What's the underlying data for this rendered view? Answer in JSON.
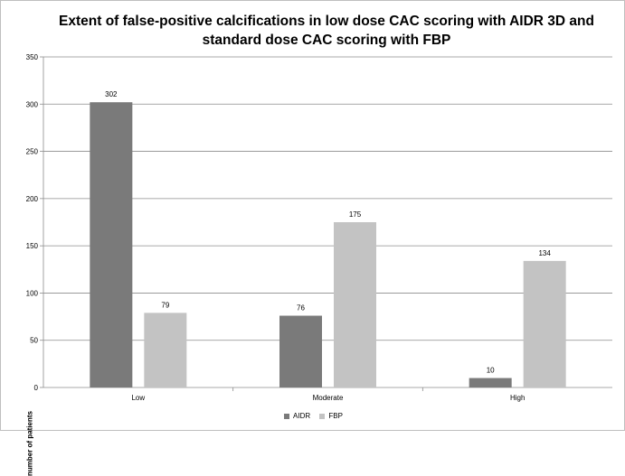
{
  "chart_data": {
    "type": "bar",
    "title_lines": [
      "Extent of false-positive calcifications in low dose CAC scoring  with AIDR 3D and",
      "standard dose CAC scoring with FBP"
    ],
    "xlabel": "",
    "ylabel": "number of patients",
    "categories": [
      "Low",
      "Moderate",
      "High"
    ],
    "series": [
      {
        "name": "AIDR",
        "values": [
          302,
          76,
          10
        ],
        "color": "#7a7a7a"
      },
      {
        "name": "FBP",
        "values": [
          79,
          175,
          134
        ],
        "color": "#c3c3c3"
      }
    ],
    "ylim": [
      0,
      350
    ],
    "yticks": [
      0,
      50,
      100,
      150,
      200,
      250,
      300,
      350
    ],
    "grid": true,
    "legend_position": "bottom",
    "data_labels": true
  }
}
